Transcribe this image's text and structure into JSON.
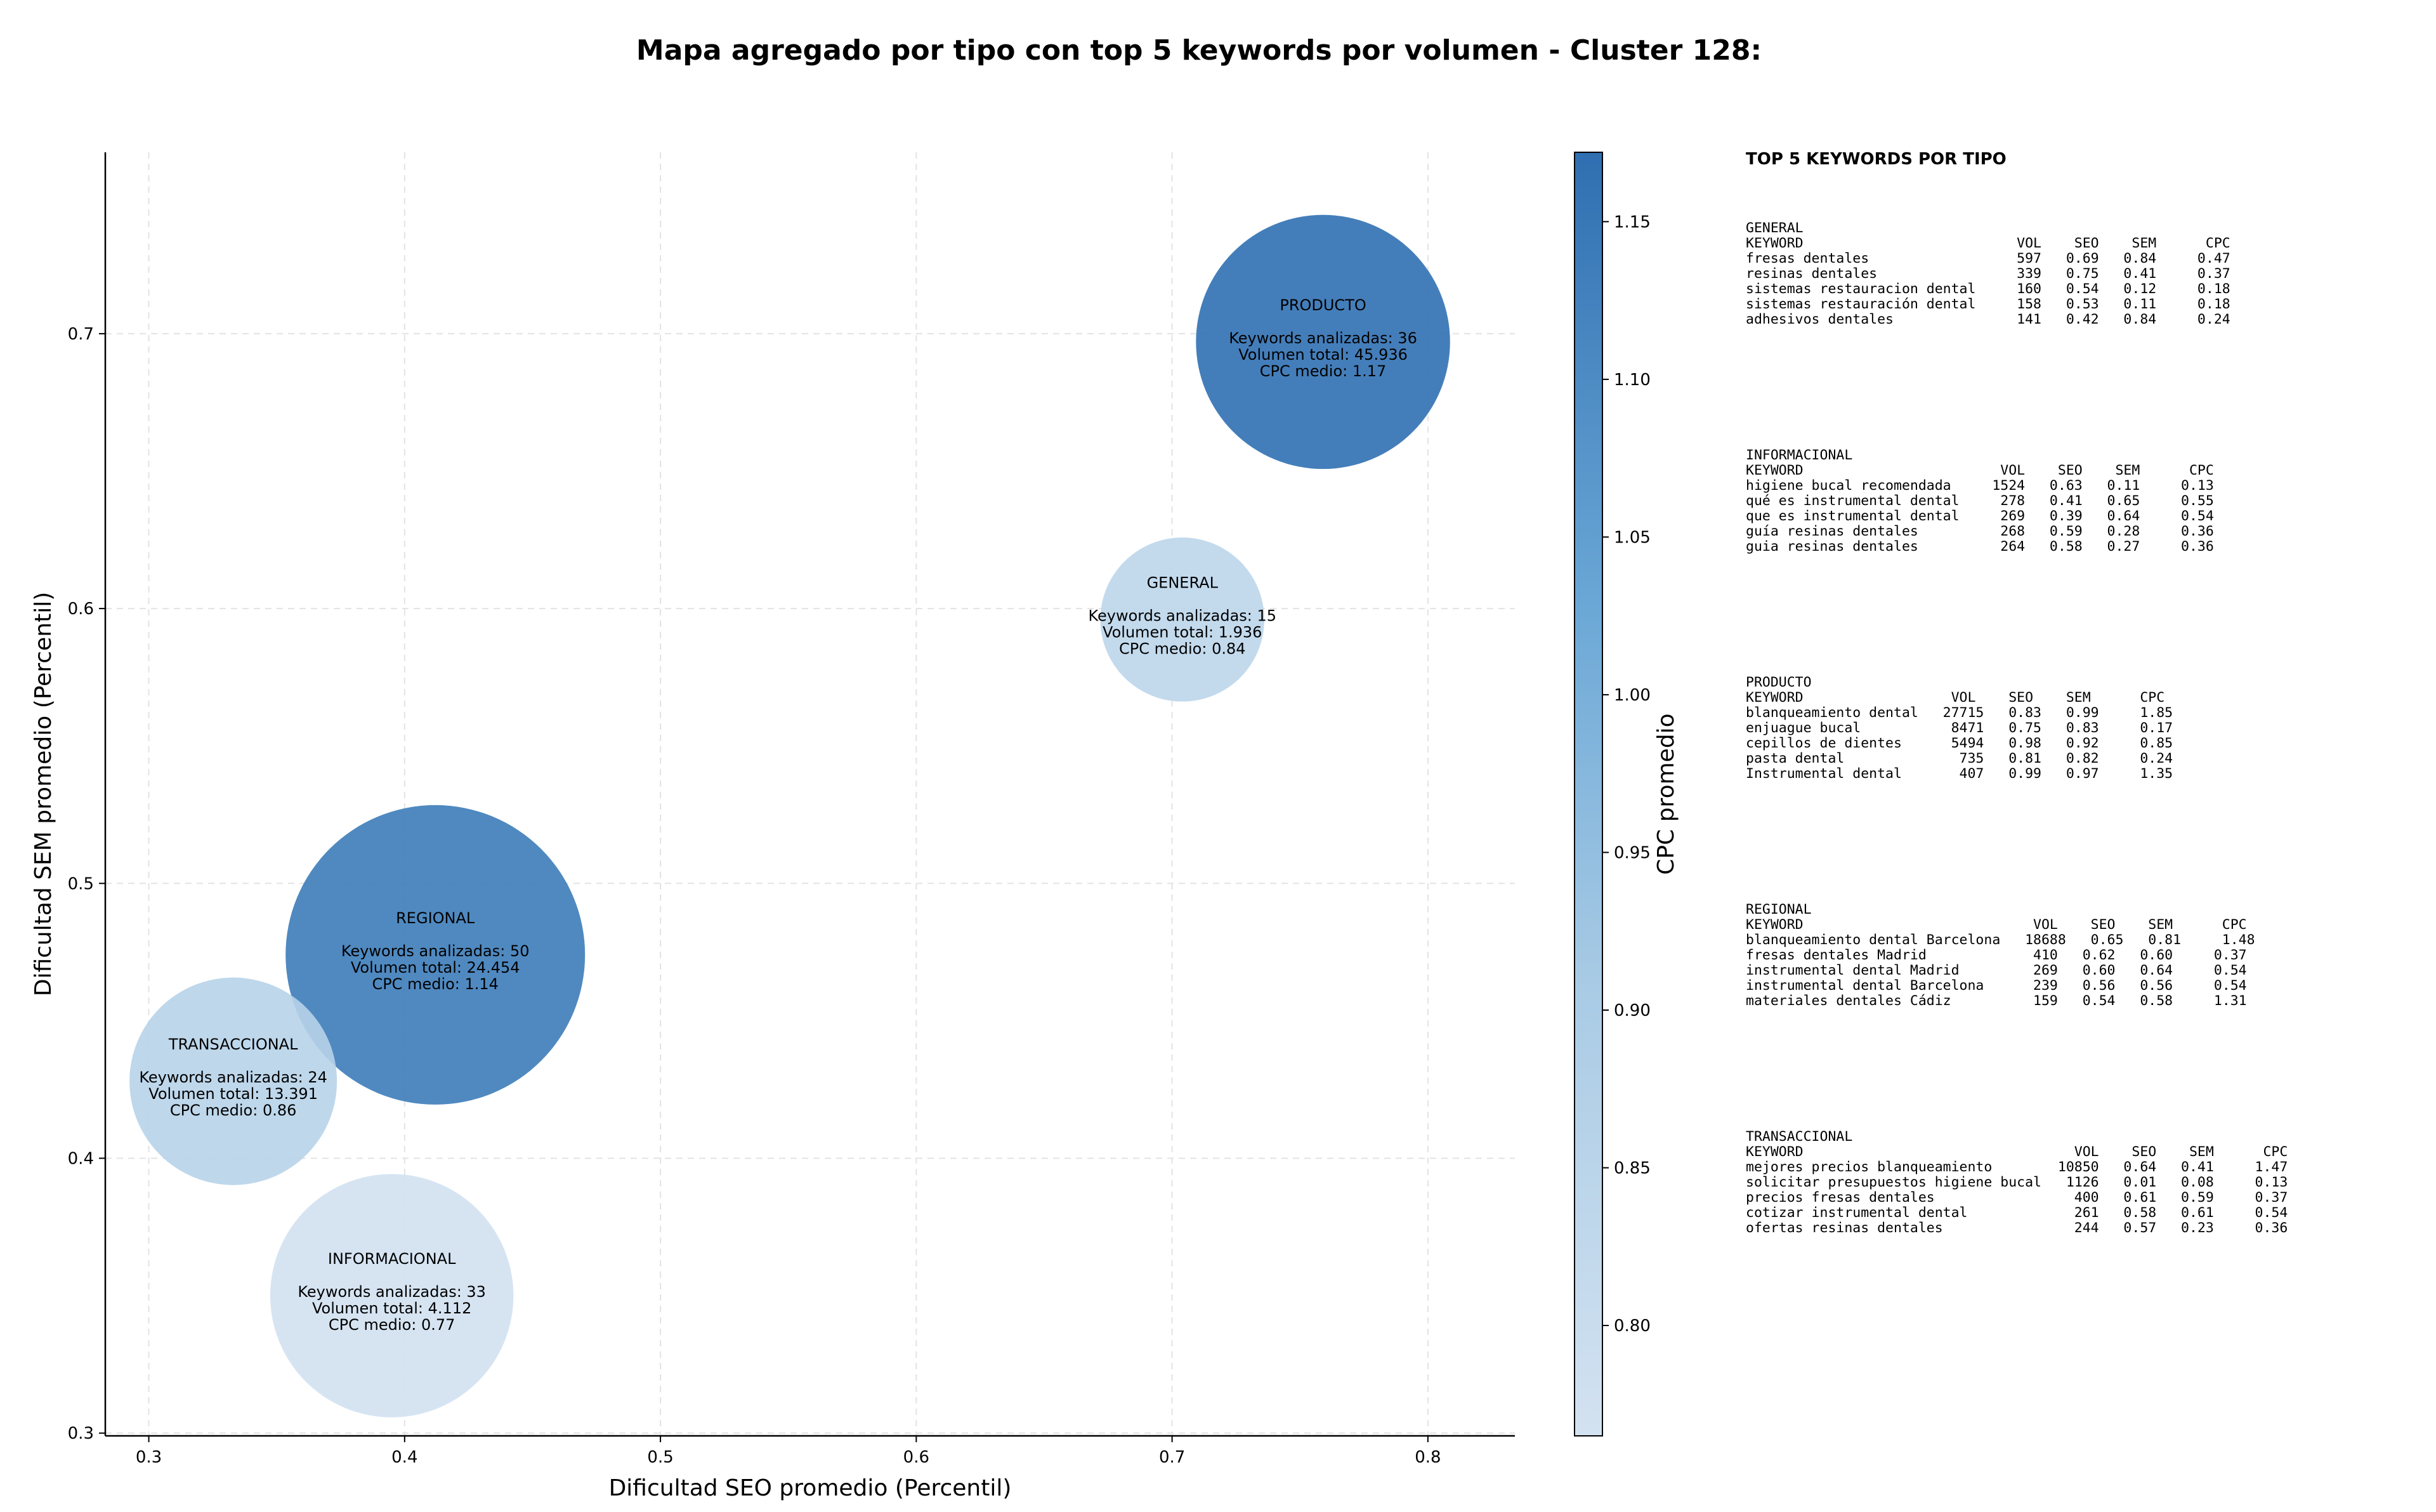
{
  "chart_data": {
    "type": "scatter",
    "title": "Mapa agregado por tipo con top 5 keywords por volumen - Cluster 128:",
    "xlabel": "Dificultad SEO promedio (Percentil)",
    "ylabel": "Dificultad SEM promedio (Percentil)",
    "xlim": [
      0.283,
      0.834
    ],
    "ylim": [
      0.299,
      0.766
    ],
    "xticks": [
      "0.3",
      "0.4",
      "0.5",
      "0.6",
      "0.7",
      "0.8"
    ],
    "yticks": [
      "0.3",
      "0.4",
      "0.5",
      "0.6",
      "0.7"
    ],
    "grid": true,
    "colorbar": {
      "label": "CPC promedio",
      "range": [
        0.765,
        1.172
      ],
      "ticks": [
        "0.80",
        "0.85",
        "0.90",
        "0.95",
        "1.00",
        "1.05",
        "1.10",
        "1.15"
      ]
    },
    "points": [
      {
        "tipo": "PRODUCTO",
        "x": 0.759,
        "y": 0.697,
        "keywords": 36,
        "volumen": "45.936",
        "volumen_num": 45936,
        "cpc": 1.17,
        "lines": [
          "PRODUCTO",
          "Keywords analizadas: 36",
          "Volumen total: 45.936",
          "CPC medio: 1.17"
        ]
      },
      {
        "tipo": "GENERAL",
        "x": 0.704,
        "y": 0.596,
        "keywords": 15,
        "volumen": "1.936",
        "volumen_num": 1936,
        "cpc": 0.84,
        "lines": [
          "GENERAL",
          "Keywords analizadas: 15",
          "Volumen total: 1.936",
          "CPC medio: 0.84"
        ]
      },
      {
        "tipo": "REGIONAL",
        "x": 0.412,
        "y": 0.474,
        "keywords": 50,
        "volumen": "24.454",
        "volumen_num": 24454,
        "cpc": 1.14,
        "lines": [
          "REGIONAL",
          "Keywords analizadas: 50",
          "Volumen total: 24.454",
          "CPC medio: 1.14"
        ]
      },
      {
        "tipo": "TRANSACCIONAL",
        "x": 0.333,
        "y": 0.428,
        "keywords": 24,
        "volumen": "13.391",
        "volumen_num": 13391,
        "cpc": 0.86,
        "lines": [
          "TRANSACCIONAL",
          "Keywords analizadas: 24",
          "Volumen total: 13.391",
          "CPC medio: 0.86"
        ]
      },
      {
        "tipo": "INFORMACIONAL",
        "x": 0.395,
        "y": 0.35,
        "keywords": 33,
        "volumen": "4.112",
        "volumen_num": 4112,
        "cpc": 0.77,
        "lines": [
          "INFORMACIONAL",
          "Keywords analizadas: 33",
          "Volumen total: 4.112",
          "CPC medio: 0.77"
        ]
      }
    ]
  },
  "colors": {
    "cmap_low": "#d3e2f1",
    "cmap_high": "#2f6fb1",
    "grid": "#e3e3e3",
    "axis": "#000000"
  },
  "panel": {
    "title": "TOP 5 KEYWORDS POR TIPO",
    "blocks": [
      {
        "name": "GENERAL",
        "header": "KEYWORD                          VOL    SEO    SEM      CPC",
        "rows": [
          "fresas dentales                  597   0.69   0.84     0.47",
          "resinas dentales                 339   0.75   0.41     0.37",
          "sistemas restauracion dental     160   0.54   0.12     0.18",
          "sistemas restauración dental     158   0.53   0.11     0.18",
          "adhesivos dentales               141   0.42   0.84     0.24"
        ]
      },
      {
        "name": "INFORMACIONAL",
        "header": "KEYWORD                        VOL    SEO    SEM      CPC",
        "rows": [
          "higiene bucal recomendada     1524   0.63   0.11     0.13",
          "qué es instrumental dental     278   0.41   0.65     0.55",
          "que es instrumental dental     269   0.39   0.64     0.54",
          "guía resinas dentales          268   0.59   0.28     0.36",
          "guia resinas dentales          264   0.58   0.27     0.36"
        ]
      },
      {
        "name": "PRODUCTO",
        "header": "KEYWORD                  VOL    SEO    SEM      CPC",
        "rows": [
          "blanqueamiento dental   27715   0.83   0.99     1.85",
          "enjuague bucal           8471   0.75   0.83     0.17",
          "cepillos de dientes      5494   0.98   0.92     0.85",
          "pasta dental              735   0.81   0.82     0.24",
          "Instrumental dental       407   0.99   0.97     1.35"
        ]
      },
      {
        "name": "REGIONAL",
        "header": "KEYWORD                            VOL    SEO    SEM      CPC",
        "rows": [
          "blanqueamiento dental Barcelona   18688   0.65   0.81     1.48",
          "fresas dentales Madrid             410   0.62   0.60     0.37",
          "instrumental dental Madrid         269   0.60   0.64     0.54",
          "instrumental dental Barcelona      239   0.56   0.56     0.54",
          "materiales dentales Cádiz          159   0.54   0.58     1.31"
        ]
      },
      {
        "name": "TRANSACCIONAL",
        "header": "KEYWORD                                 VOL    SEO    SEM      CPC",
        "rows": [
          "mejores precios blanqueamiento        10850   0.64   0.41     1.47",
          "solicitar presupuestos higiene bucal   1126   0.01   0.08     0.13",
          "precios fresas dentales                 400   0.61   0.59     0.37",
          "cotizar instrumental dental             261   0.58   0.61     0.54",
          "ofertas resinas dentales                244   0.57   0.23     0.36"
        ]
      }
    ]
  }
}
